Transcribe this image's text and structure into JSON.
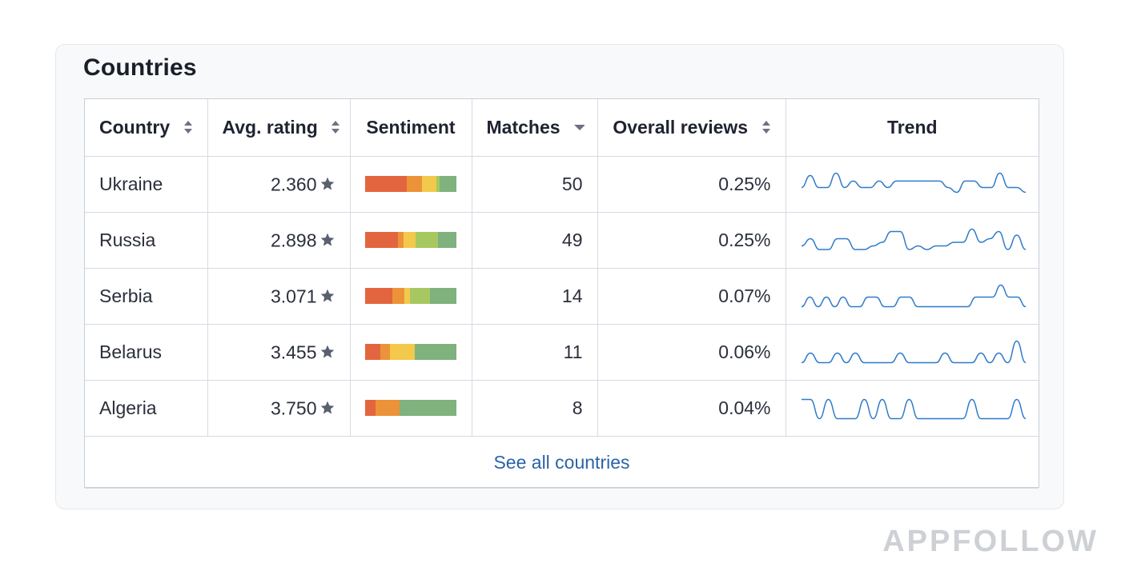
{
  "card": {
    "title": "Countries"
  },
  "table": {
    "columns": [
      {
        "key": "country",
        "label": "Country",
        "sort": "both"
      },
      {
        "key": "rating",
        "label": "Avg. rating",
        "sort": "both"
      },
      {
        "key": "sentiment",
        "label": "Sentiment",
        "sort": "none"
      },
      {
        "key": "matches",
        "label": "Matches",
        "sort": "desc"
      },
      {
        "key": "overall",
        "label": "Overall reviews",
        "sort": "both"
      },
      {
        "key": "trend",
        "label": "Trend",
        "sort": "none"
      }
    ],
    "rows": [
      {
        "country": "Ukraine",
        "rating": "2.360",
        "matches": "50",
        "overall": "0.25%",
        "sentiment": [
          0.46,
          0.16,
          0.16,
          0.03,
          0.19
        ],
        "trend": [
          0.35,
          0.85,
          0.35,
          0.35,
          0.95,
          0.35,
          0.62,
          0.35,
          0.35,
          0.62,
          0.35,
          0.62,
          0.62,
          0.62,
          0.62,
          0.62,
          0.62,
          0.35,
          0.15,
          0.62,
          0.62,
          0.35,
          0.35,
          0.95,
          0.35,
          0.35,
          0.15
        ]
      },
      {
        "country": "Russia",
        "rating": "2.898",
        "matches": "49",
        "overall": "0.25%",
        "sentiment": [
          0.36,
          0.06,
          0.13,
          0.25,
          0.2
        ],
        "trend": [
          0.25,
          0.55,
          0.1,
          0.1,
          0.55,
          0.55,
          0.1,
          0.1,
          0.25,
          0.4,
          0.85,
          0.85,
          0.1,
          0.25,
          0.1,
          0.25,
          0.25,
          0.4,
          0.4,
          0.95,
          0.4,
          0.55,
          0.85,
          0.1,
          0.7,
          0.1
        ]
      },
      {
        "country": "Serbia",
        "rating": "3.071",
        "matches": "14",
        "overall": "0.07%",
        "sentiment": [
          0.3,
          0.13,
          0.06,
          0.22,
          0.29
        ],
        "trend": [
          0.05,
          0.45,
          0.05,
          0.45,
          0.05,
          0.45,
          0.05,
          0.05,
          0.45,
          0.45,
          0.05,
          0.05,
          0.45,
          0.45,
          0.05,
          0.05,
          0.05,
          0.05,
          0.05,
          0.05,
          0.05,
          0.45,
          0.45,
          0.45,
          0.95,
          0.45,
          0.45,
          0.05
        ]
      },
      {
        "country": "Belarus",
        "rating": "3.455",
        "matches": "11",
        "overall": "0.06%",
        "sentiment": [
          0.17,
          0.1,
          0.27,
          0.0,
          0.46
        ],
        "trend": [
          0.05,
          0.45,
          0.05,
          0.05,
          0.45,
          0.05,
          0.45,
          0.05,
          0.05,
          0.05,
          0.05,
          0.45,
          0.05,
          0.05,
          0.05,
          0.05,
          0.45,
          0.05,
          0.05,
          0.05,
          0.45,
          0.05,
          0.45,
          0.05,
          0.95,
          0.05
        ]
      },
      {
        "country": "Algeria",
        "rating": "3.750",
        "matches": "8",
        "overall": "0.04%",
        "sentiment": [
          0.12,
          0.26,
          0.0,
          0.0,
          0.62
        ],
        "trend": [
          0.85,
          0.85,
          0.05,
          0.85,
          0.05,
          0.05,
          0.05,
          0.85,
          0.05,
          0.85,
          0.05,
          0.05,
          0.85,
          0.05,
          0.05,
          0.05,
          0.05,
          0.05,
          0.05,
          0.85,
          0.05,
          0.05,
          0.05,
          0.05,
          0.85,
          0.05
        ]
      }
    ],
    "footer": {
      "see_all_label": "See all countries"
    }
  },
  "colors": {
    "sentiment": [
      "#e3653f",
      "#ec9238",
      "#f3c94b",
      "#a7c861",
      "#7fb27c"
    ],
    "trend_line": "#2f7bc8",
    "link": "#2b63a8",
    "star": "#5a6070"
  },
  "icons": {
    "sort": "sort-arrows-icon",
    "sort_desc": "caret-down-icon",
    "rating": "star-icon"
  },
  "branding": {
    "watermark": "APPFOLLOW"
  }
}
